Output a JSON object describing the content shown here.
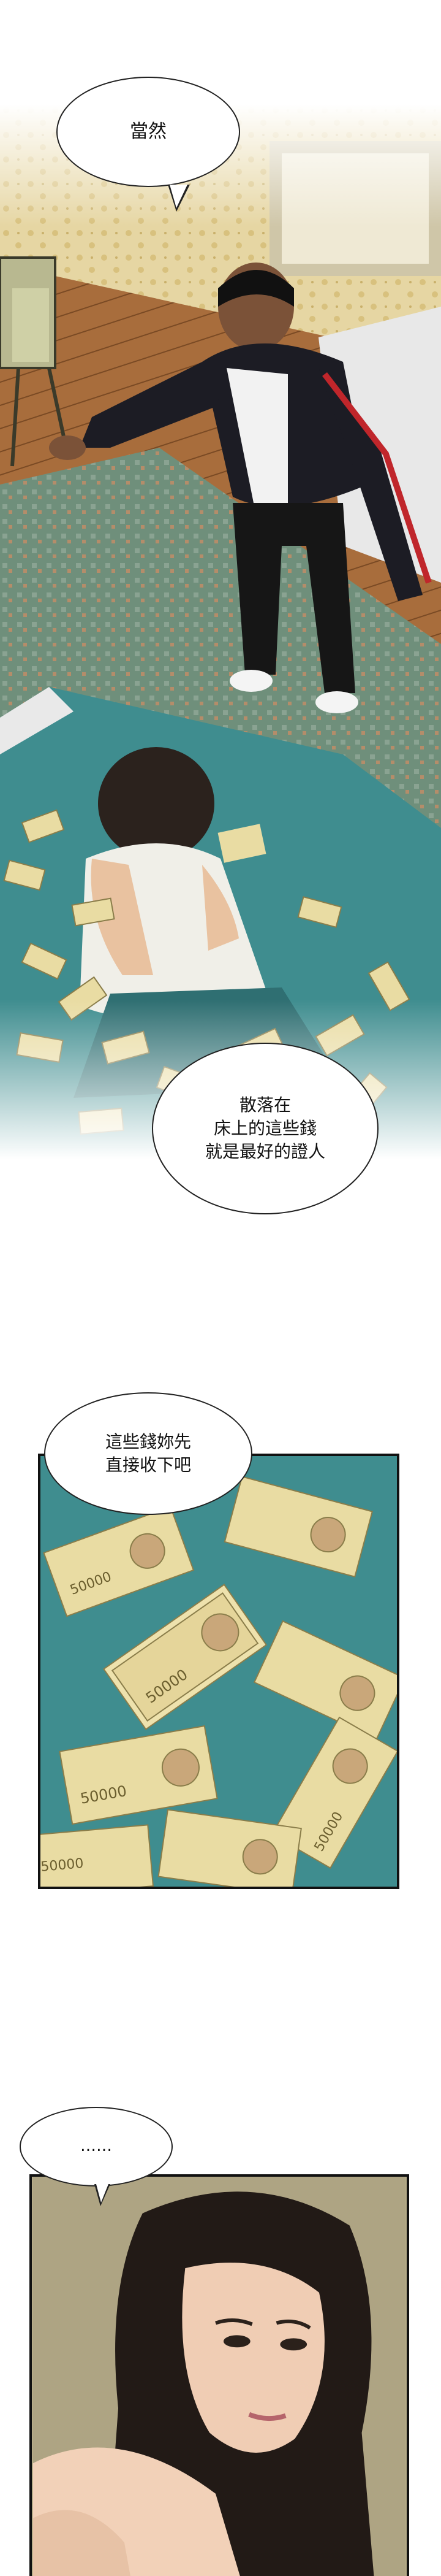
{
  "dialogue": {
    "bubble1": "當然",
    "bubble2": "散落在\n床上的這些錢\n就是最好的證人",
    "bubble3": "這些錢妳先\n直接收下吧",
    "bubble4": "……"
  },
  "banknote_denomination": "50000",
  "colors": {
    "bed_teal": "#3f8d8f",
    "floor_wood": "#a86d3c",
    "wallpaper": "#e6d6a3",
    "rug": "#6f8f7b",
    "banknote": "#e9dca3",
    "panel_border": "#111111"
  }
}
